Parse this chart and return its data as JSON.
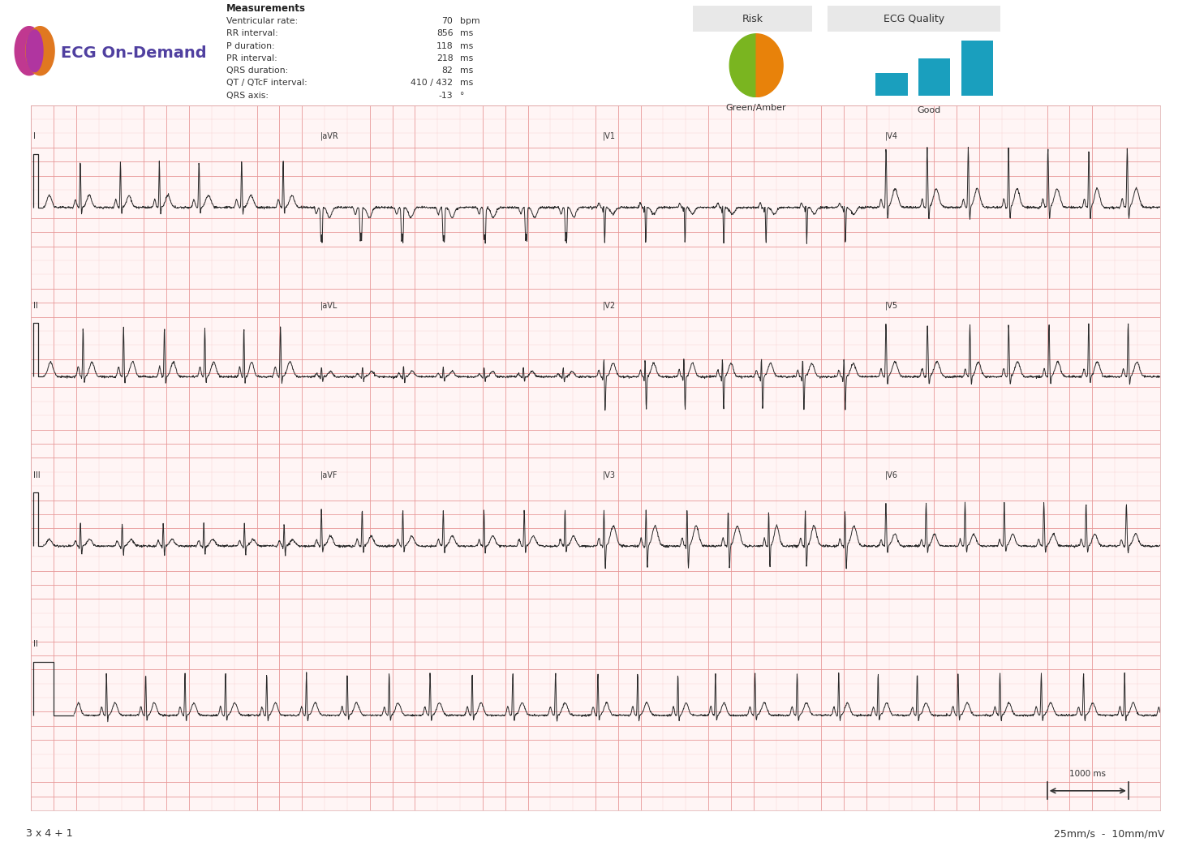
{
  "background_color": "#ffffff",
  "ecg_bg_color": "#fff5f5",
  "grid_minor_color": "#f8c8c8",
  "grid_major_color": "#e89898",
  "ecg_line_color": "#2a2a2a",
  "title_text": "ECG On-Demand",
  "measurements_title": "Measurements",
  "measurements": [
    [
      "Ventricular rate:",
      "70",
      "bpm"
    ],
    [
      "RR interval:",
      "856",
      "ms"
    ],
    [
      "P duration:",
      "118",
      "ms"
    ],
    [
      "PR interval:",
      "218",
      "ms"
    ],
    [
      "QRS duration:",
      "82",
      "ms"
    ],
    [
      "QT / QTcF interval:",
      "410 / 432",
      "ms"
    ],
    [
      "QRS axis:",
      "-13",
      "°"
    ]
  ],
  "risk_label": "Risk",
  "ecg_quality_label": "ECG Quality",
  "risk_value": "Green/Amber",
  "quality_value": "Good",
  "footer_left": "3 x 4 + 1",
  "footer_right": "25mm/s  -  10mm/mV",
  "scale_label": "1000 ms",
  "brand_color": "#5b3fa0",
  "pie_green": "#7ab520",
  "pie_amber": "#e8820a",
  "bar_color": "#1a9fbe"
}
